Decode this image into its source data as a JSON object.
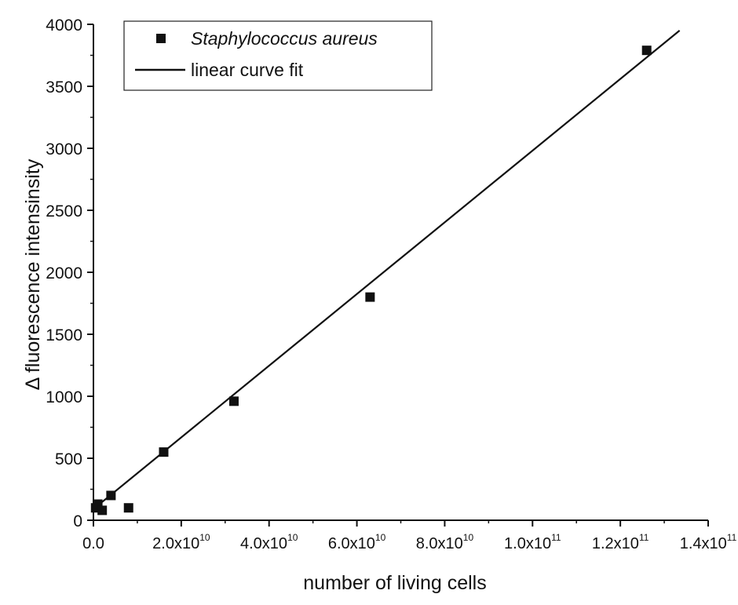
{
  "chart_data": {
    "type": "scatter",
    "xlabel": "number of living cells",
    "ylabel": "Δ fluorescence intensinsity",
    "xlim": [
      0,
      140000000000.0
    ],
    "ylim": [
      0,
      4000
    ],
    "x_ticks": [
      {
        "value": 0,
        "mant": "0.0",
        "exp": ""
      },
      {
        "value": 20000000000.0,
        "mant": "2.0x10",
        "exp": "10"
      },
      {
        "value": 40000000000.0,
        "mant": "4.0x10",
        "exp": "10"
      },
      {
        "value": 60000000000.0,
        "mant": "6.0x10",
        "exp": "10"
      },
      {
        "value": 80000000000.0,
        "mant": "8.0x10",
        "exp": "10"
      },
      {
        "value": 100000000000.0,
        "mant": "1.0x10",
        "exp": "11"
      },
      {
        "value": 120000000000.0,
        "mant": "1.2x10",
        "exp": "11"
      },
      {
        "value": 140000000000.0,
        "mant": "1.4x10",
        "exp": "11"
      }
    ],
    "y_ticks": [
      0,
      500,
      1000,
      1500,
      2000,
      2500,
      3000,
      3500,
      4000
    ],
    "grid": false,
    "legend_position": "top-left",
    "series": [
      {
        "name": "Staphylococcus aureus",
        "kind": "scatter",
        "marker": "square",
        "color": "#111111",
        "points": [
          {
            "x": 500000000.0,
            "y": 100
          },
          {
            "x": 1000000000.0,
            "y": 130
          },
          {
            "x": 2000000000.0,
            "y": 80
          },
          {
            "x": 4000000000.0,
            "y": 200
          },
          {
            "x": 8000000000.0,
            "y": 100
          },
          {
            "x": 16000000000.0,
            "y": 550
          },
          {
            "x": 32000000000.0,
            "y": 960
          },
          {
            "x": 63000000000.0,
            "y": 1800
          },
          {
            "x": 126000000000.0,
            "y": 3790
          }
        ]
      },
      {
        "name": "linear curve fit",
        "kind": "line",
        "color": "#111111",
        "points": [
          {
            "x": 0,
            "y": 90
          },
          {
            "x": 133500000000.0,
            "y": 3950
          }
        ]
      }
    ]
  }
}
